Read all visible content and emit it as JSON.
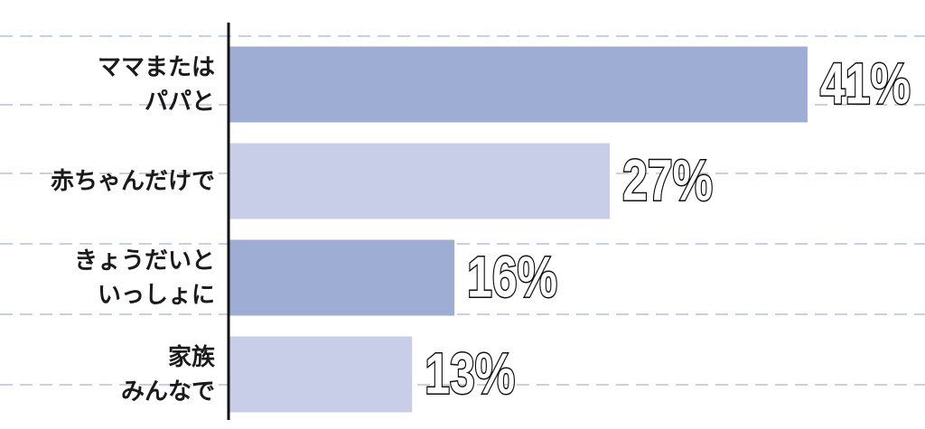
{
  "chart_data": {
    "type": "bar",
    "orientation": "horizontal",
    "categories": [
      "ママまたは\nパパと",
      "赤ちゃんだけで",
      "きょうだいと\nいっしょに",
      "家族\nみんなで"
    ],
    "values": [
      41,
      27,
      16,
      13
    ],
    "value_labels": [
      "41%",
      "27%",
      "16%",
      "13%"
    ],
    "colors": [
      "#9eadd3",
      "#c8cee8",
      "#9eadd3",
      "#c8cee8"
    ],
    "xlim": [
      0,
      49
    ]
  }
}
